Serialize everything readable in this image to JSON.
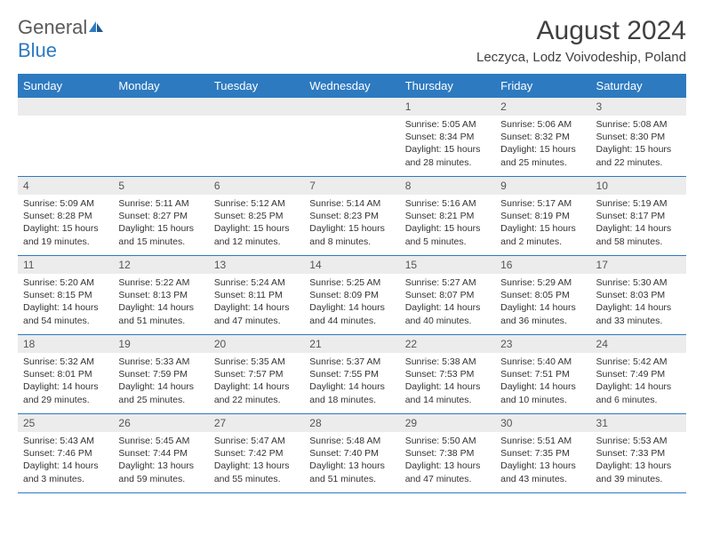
{
  "logo": {
    "word1": "General",
    "word2": "Blue"
  },
  "title": "August 2024",
  "location": "Leczyca, Lodz Voivodeship, Poland",
  "colors": {
    "accent": "#2d7ac0",
    "header_text": "#ffffff",
    "daynum_bg": "#ececec",
    "daynum_text": "#555555",
    "body_text": "#333333",
    "title_text": "#404040",
    "logo_gray": "#5a5a5a"
  },
  "weekdays": [
    "Sunday",
    "Monday",
    "Tuesday",
    "Wednesday",
    "Thursday",
    "Friday",
    "Saturday"
  ],
  "weeks": [
    [
      null,
      null,
      null,
      null,
      {
        "n": "1",
        "sr": "5:05 AM",
        "ss": "8:34 PM",
        "dl": "15 hours and 28 minutes."
      },
      {
        "n": "2",
        "sr": "5:06 AM",
        "ss": "8:32 PM",
        "dl": "15 hours and 25 minutes."
      },
      {
        "n": "3",
        "sr": "5:08 AM",
        "ss": "8:30 PM",
        "dl": "15 hours and 22 minutes."
      }
    ],
    [
      {
        "n": "4",
        "sr": "5:09 AM",
        "ss": "8:28 PM",
        "dl": "15 hours and 19 minutes."
      },
      {
        "n": "5",
        "sr": "5:11 AM",
        "ss": "8:27 PM",
        "dl": "15 hours and 15 minutes."
      },
      {
        "n": "6",
        "sr": "5:12 AM",
        "ss": "8:25 PM",
        "dl": "15 hours and 12 minutes."
      },
      {
        "n": "7",
        "sr": "5:14 AM",
        "ss": "8:23 PM",
        "dl": "15 hours and 8 minutes."
      },
      {
        "n": "8",
        "sr": "5:16 AM",
        "ss": "8:21 PM",
        "dl": "15 hours and 5 minutes."
      },
      {
        "n": "9",
        "sr": "5:17 AM",
        "ss": "8:19 PM",
        "dl": "15 hours and 2 minutes."
      },
      {
        "n": "10",
        "sr": "5:19 AM",
        "ss": "8:17 PM",
        "dl": "14 hours and 58 minutes."
      }
    ],
    [
      {
        "n": "11",
        "sr": "5:20 AM",
        "ss": "8:15 PM",
        "dl": "14 hours and 54 minutes."
      },
      {
        "n": "12",
        "sr": "5:22 AM",
        "ss": "8:13 PM",
        "dl": "14 hours and 51 minutes."
      },
      {
        "n": "13",
        "sr": "5:24 AM",
        "ss": "8:11 PM",
        "dl": "14 hours and 47 minutes."
      },
      {
        "n": "14",
        "sr": "5:25 AM",
        "ss": "8:09 PM",
        "dl": "14 hours and 44 minutes."
      },
      {
        "n": "15",
        "sr": "5:27 AM",
        "ss": "8:07 PM",
        "dl": "14 hours and 40 minutes."
      },
      {
        "n": "16",
        "sr": "5:29 AM",
        "ss": "8:05 PM",
        "dl": "14 hours and 36 minutes."
      },
      {
        "n": "17",
        "sr": "5:30 AM",
        "ss": "8:03 PM",
        "dl": "14 hours and 33 minutes."
      }
    ],
    [
      {
        "n": "18",
        "sr": "5:32 AM",
        "ss": "8:01 PM",
        "dl": "14 hours and 29 minutes."
      },
      {
        "n": "19",
        "sr": "5:33 AM",
        "ss": "7:59 PM",
        "dl": "14 hours and 25 minutes."
      },
      {
        "n": "20",
        "sr": "5:35 AM",
        "ss": "7:57 PM",
        "dl": "14 hours and 22 minutes."
      },
      {
        "n": "21",
        "sr": "5:37 AM",
        "ss": "7:55 PM",
        "dl": "14 hours and 18 minutes."
      },
      {
        "n": "22",
        "sr": "5:38 AM",
        "ss": "7:53 PM",
        "dl": "14 hours and 14 minutes."
      },
      {
        "n": "23",
        "sr": "5:40 AM",
        "ss": "7:51 PM",
        "dl": "14 hours and 10 minutes."
      },
      {
        "n": "24",
        "sr": "5:42 AM",
        "ss": "7:49 PM",
        "dl": "14 hours and 6 minutes."
      }
    ],
    [
      {
        "n": "25",
        "sr": "5:43 AM",
        "ss": "7:46 PM",
        "dl": "14 hours and 3 minutes."
      },
      {
        "n": "26",
        "sr": "5:45 AM",
        "ss": "7:44 PM",
        "dl": "13 hours and 59 minutes."
      },
      {
        "n": "27",
        "sr": "5:47 AM",
        "ss": "7:42 PM",
        "dl": "13 hours and 55 minutes."
      },
      {
        "n": "28",
        "sr": "5:48 AM",
        "ss": "7:40 PM",
        "dl": "13 hours and 51 minutes."
      },
      {
        "n": "29",
        "sr": "5:50 AM",
        "ss": "7:38 PM",
        "dl": "13 hours and 47 minutes."
      },
      {
        "n": "30",
        "sr": "5:51 AM",
        "ss": "7:35 PM",
        "dl": "13 hours and 43 minutes."
      },
      {
        "n": "31",
        "sr": "5:53 AM",
        "ss": "7:33 PM",
        "dl": "13 hours and 39 minutes."
      }
    ]
  ],
  "labels": {
    "sunrise": "Sunrise: ",
    "sunset": "Sunset: ",
    "daylight": "Daylight: "
  }
}
